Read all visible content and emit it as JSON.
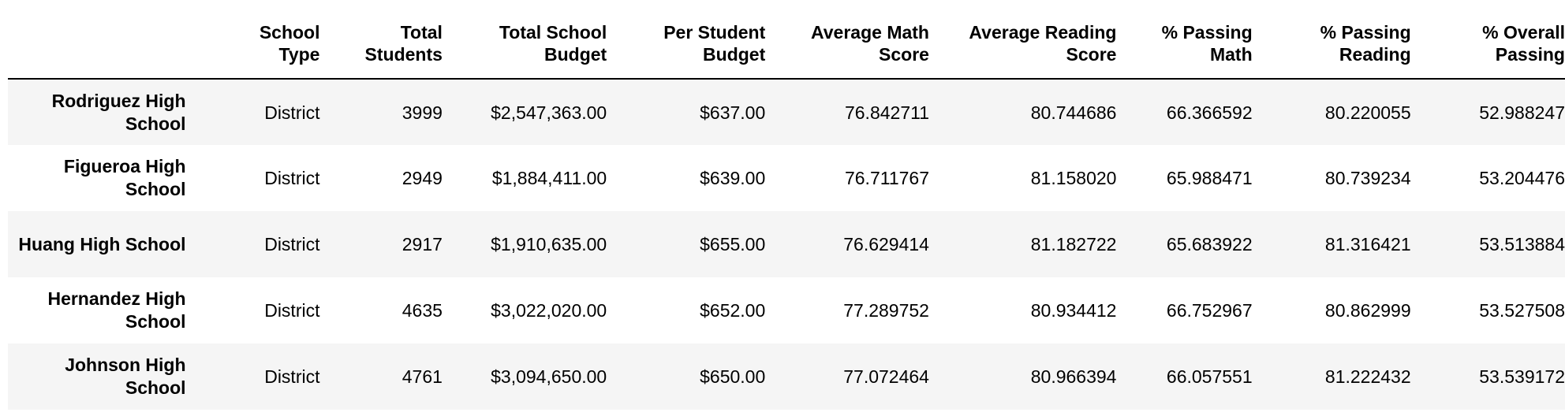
{
  "table": {
    "columns": [
      "",
      "School\nType",
      "Total\nStudents",
      "Total School\nBudget",
      "Per Student\nBudget",
      "Average Math\nScore",
      "Average Reading\nScore",
      "% Passing\nMath",
      "% Passing\nReading",
      "% Overall\nPassing"
    ],
    "rows": [
      {
        "index": "Rodriguez High School",
        "cells": [
          "District",
          "3999",
          "$2,547,363.00",
          "$637.00",
          "76.842711",
          "80.744686",
          "66.366592",
          "80.220055",
          "52.988247"
        ]
      },
      {
        "index": "Figueroa High School",
        "cells": [
          "District",
          "2949",
          "$1,884,411.00",
          "$639.00",
          "76.711767",
          "81.158020",
          "65.988471",
          "80.739234",
          "53.204476"
        ]
      },
      {
        "index": "Huang High School",
        "cells": [
          "District",
          "2917",
          "$1,910,635.00",
          "$655.00",
          "76.629414",
          "81.182722",
          "65.683922",
          "81.316421",
          "53.513884"
        ]
      },
      {
        "index": "Hernandez High School",
        "cells": [
          "District",
          "4635",
          "$3,022,020.00",
          "$652.00",
          "77.289752",
          "80.934412",
          "66.752967",
          "80.862999",
          "53.527508"
        ]
      },
      {
        "index": "Johnson High School",
        "cells": [
          "District",
          "4761",
          "$3,094,650.00",
          "$650.00",
          "77.072464",
          "80.966394",
          "66.057551",
          "81.222432",
          "53.539172"
        ]
      }
    ]
  }
}
